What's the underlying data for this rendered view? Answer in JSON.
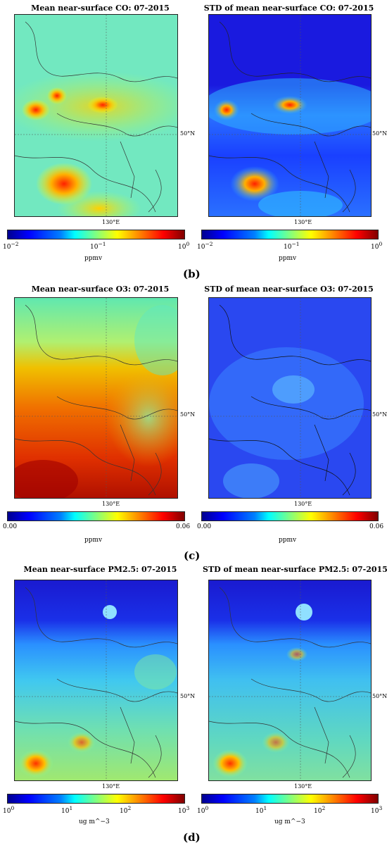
{
  "chart_data": [
    {
      "type": "heatmap",
      "title": "Mean near-surface CO: 07-2015",
      "colorbar": {
        "scale": "log",
        "range": [
          0.01,
          1
        ],
        "ticks": [
          "10",
          "10",
          "10"
        ],
        "tick_exp": [
          "−2",
          "−1",
          "0"
        ],
        "unit": "ppmv"
      },
      "lat_label": "50°N",
      "lon_label": "130°E"
    },
    {
      "type": "heatmap",
      "title": "STD of mean near-surface CO: 07-2015",
      "colorbar": {
        "scale": "log",
        "range": [
          0.01,
          1
        ],
        "ticks": [
          "10",
          "10",
          "10"
        ],
        "tick_exp": [
          "−2",
          "−1",
          "0"
        ],
        "unit": "ppmv"
      },
      "lat_label": "50°N",
      "lon_label": "130°E"
    },
    {
      "type": "heatmap",
      "title": "Mean near-surface O3: 07-2015",
      "colorbar": {
        "scale": "linear",
        "range": [
          0.0,
          0.06
        ],
        "ticks": [
          "0.00",
          "0.06"
        ],
        "unit": "ppmv"
      },
      "lat_label": "50°N",
      "lon_label": "130°E"
    },
    {
      "type": "heatmap",
      "title": "STD of mean near-surface O3: 07-2015",
      "colorbar": {
        "scale": "linear",
        "range": [
          0.0,
          0.06
        ],
        "ticks": [
          "0.00",
          "0.06"
        ],
        "unit": "ppmv"
      },
      "lat_label": "50°N",
      "lon_label": "130°E"
    },
    {
      "type": "heatmap",
      "title": "Mean near-surface PM2.5: 07-2015",
      "colorbar": {
        "scale": "log",
        "range": [
          1,
          1000
        ],
        "ticks": [
          "10",
          "10",
          "10",
          "10"
        ],
        "tick_exp": [
          "0",
          "1",
          "2",
          "3"
        ],
        "unit": "ug m^−3"
      },
      "lat_label": "50°N",
      "lon_label": "130°E"
    },
    {
      "type": "heatmap",
      "title": "STD of mean near-surface PM2.5: 07-2015",
      "colorbar": {
        "scale": "log",
        "range": [
          1,
          1000
        ],
        "ticks": [
          "10",
          "10",
          "10",
          "10"
        ],
        "tick_exp": [
          "0",
          "1",
          "2",
          "3"
        ],
        "unit": "ug m^−3"
      },
      "lat_label": "50°N",
      "lon_label": "130°E"
    }
  ],
  "subfigure_labels": [
    "(b)",
    "(c)",
    "(d)"
  ]
}
